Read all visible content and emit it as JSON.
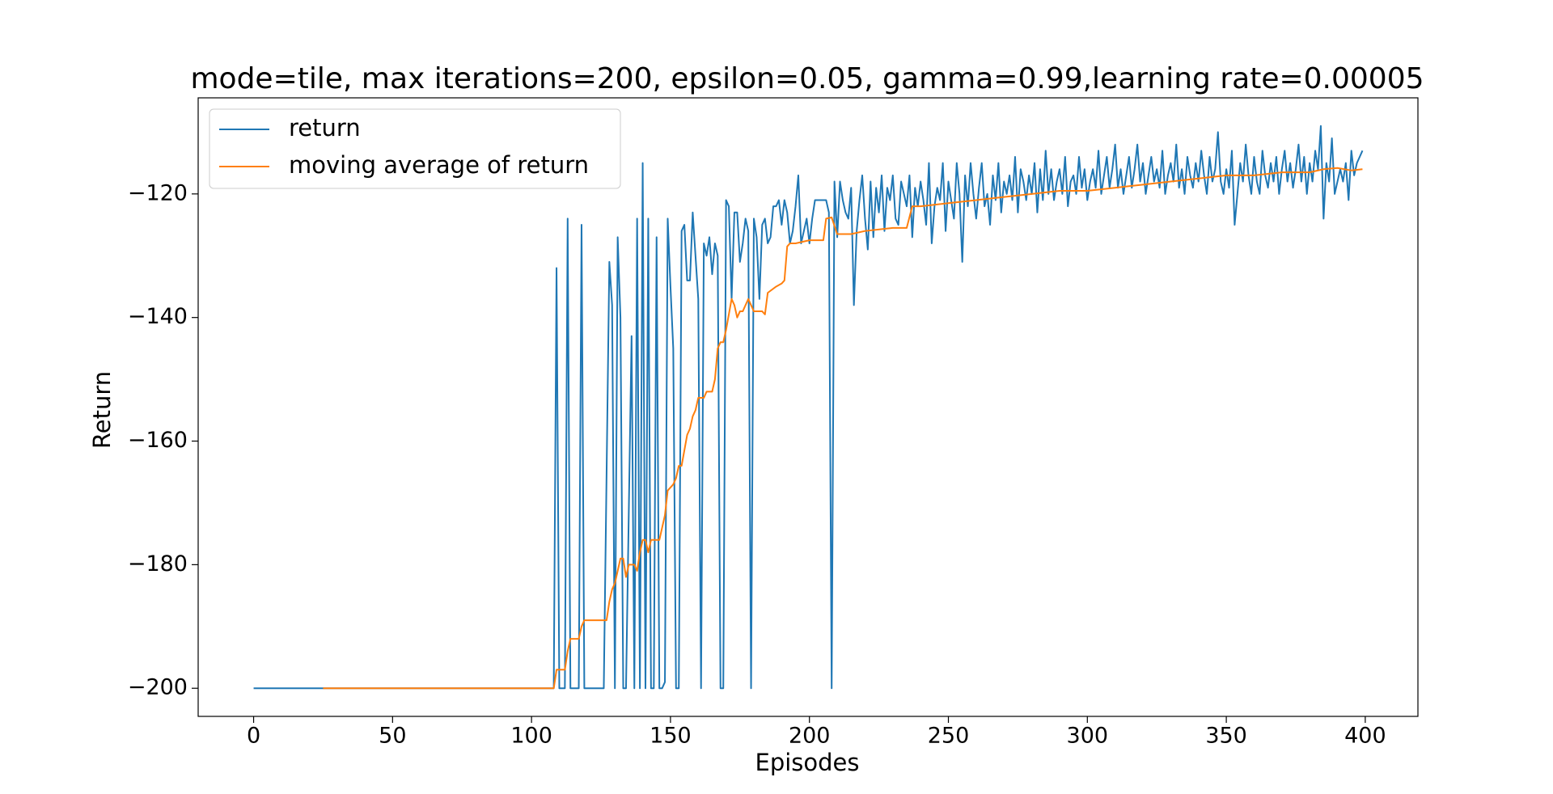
{
  "chart_data": {
    "type": "line",
    "title": "mode=tile, max iterations=200, epsilon=0.05, gamma=0.99,learning rate=0.00005",
    "xlabel": "Episodes",
    "ylabel": "Return",
    "xlim": [
      -19.95,
      418.95
    ],
    "ylim": [
      -204.55,
      -104.45
    ],
    "xticks": [
      0,
      50,
      100,
      150,
      200,
      250,
      300,
      350,
      400
    ],
    "yticks": [
      {
        "value": -200,
        "label": "−200"
      },
      {
        "value": -180,
        "label": "−180"
      },
      {
        "value": -160,
        "label": "−160"
      },
      {
        "value": -140,
        "label": "−140"
      },
      {
        "value": -120,
        "label": "−120"
      }
    ],
    "legend": "upper left",
    "series": [
      {
        "name": "return",
        "color": "#1f77b4",
        "x": [
          0,
          108,
          109,
          110,
          111,
          112,
          113,
          114,
          115,
          116,
          117,
          118,
          119,
          120,
          122,
          124,
          126,
          128,
          129,
          130,
          131,
          132,
          133,
          134,
          136,
          137,
          138,
          139,
          140,
          141,
          142,
          143,
          144,
          145,
          146,
          147,
          148,
          149,
          150,
          151,
          152,
          153,
          154,
          155,
          156,
          157,
          158,
          159,
          160,
          161,
          162,
          163,
          164,
          165,
          166,
          167,
          168,
          169,
          170,
          171,
          172,
          173,
          174,
          175,
          176,
          177,
          178,
          179,
          180,
          181,
          182,
          183,
          184,
          185,
          186,
          187,
          188,
          189,
          190,
          191,
          192,
          193,
          194,
          195,
          196,
          197,
          198,
          199,
          200,
          201,
          202,
          203,
          204,
          205,
          206,
          207,
          208,
          209,
          210,
          211,
          212,
          213,
          214,
          215,
          216,
          217,
          218,
          219,
          220,
          221,
          222,
          223,
          224,
          225,
          226,
          227,
          228,
          229,
          230,
          231,
          232,
          233,
          234,
          235,
          236,
          237,
          238,
          239,
          240,
          241,
          242,
          243,
          244,
          245,
          246,
          247,
          248,
          249,
          250,
          251,
          252,
          253,
          254,
          255,
          256,
          257,
          258,
          259,
          260,
          261,
          262,
          263,
          264,
          265,
          266,
          267,
          268,
          269,
          270,
          271,
          272,
          273,
          274,
          275,
          276,
          277,
          278,
          279,
          280,
          281,
          282,
          283,
          284,
          285,
          286,
          287,
          288,
          289,
          290,
          291,
          292,
          293,
          294,
          295,
          296,
          297,
          298,
          299,
          300,
          301,
          302,
          303,
          304,
          305,
          306,
          307,
          308,
          309,
          310,
          311,
          312,
          313,
          314,
          315,
          316,
          317,
          318,
          319,
          320,
          321,
          322,
          323,
          324,
          325,
          326,
          327,
          328,
          329,
          330,
          331,
          332,
          333,
          334,
          335,
          336,
          337,
          338,
          339,
          340,
          341,
          342,
          343,
          344,
          345,
          346,
          347,
          348,
          349,
          350,
          351,
          352,
          353,
          354,
          355,
          356,
          357,
          358,
          359,
          360,
          361,
          362,
          363,
          364,
          365,
          366,
          367,
          368,
          369,
          370,
          371,
          372,
          373,
          374,
          375,
          376,
          377,
          378,
          379,
          380,
          381,
          382,
          383,
          384,
          385,
          386,
          387,
          388,
          389,
          390,
          391,
          392,
          393,
          394,
          395,
          396,
          397,
          398,
          399
        ],
        "values": [
          -200,
          -200,
          -132,
          -200,
          -200,
          -200,
          -124,
          -200,
          -200,
          -200,
          -200,
          -125,
          -200,
          -200,
          -200,
          -200,
          -200,
          -131,
          -138,
          -200,
          -127,
          -140,
          -200,
          -200,
          -143,
          -200,
          -124,
          -200,
          -115,
          -200,
          -124,
          -200,
          -200,
          -127,
          -200,
          -200,
          -199,
          -124,
          -135,
          -145,
          -200,
          -200,
          -126,
          -125,
          -134,
          -134,
          -123,
          -130,
          -137,
          -200,
          -128,
          -130,
          -127,
          -133,
          -128,
          -130,
          -200,
          -200,
          -121,
          -122,
          -137,
          -123,
          -123,
          -131,
          -128,
          -124,
          -126,
          -200,
          -124,
          -127,
          -137,
          -125,
          -124,
          -128,
          -127,
          -122,
          -122,
          -121,
          -125,
          -121,
          -123,
          -128,
          -126,
          -122,
          -117,
          -128,
          -126,
          -124,
          -128,
          -124,
          -121,
          -121,
          -121,
          -121,
          -121,
          -123,
          -200,
          -118,
          -127,
          -118,
          -121,
          -123,
          -124,
          -119,
          -138,
          -126,
          -121,
          -117,
          -124,
          -129,
          -118,
          -127,
          -119,
          -123,
          -117,
          -126,
          -119,
          -121,
          -117,
          -124,
          -125,
          -118,
          -120,
          -122,
          -117,
          -127,
          -119,
          -122,
          -118,
          -121,
          -125,
          -115,
          -128,
          -122,
          -119,
          -121,
          -115,
          -126,
          -118,
          -121,
          -124,
          -115,
          -120,
          -131,
          -117,
          -122,
          -115,
          -120,
          -124,
          -119,
          -115,
          -122,
          -120,
          -125,
          -117,
          -121,
          -115,
          -123,
          -118,
          -120,
          -117,
          -121,
          -114,
          -123,
          -116,
          -118,
          -121,
          -117,
          -120,
          -115,
          -123,
          -116,
          -121,
          -113,
          -120,
          -116,
          -121,
          -118,
          -116,
          -120,
          -114,
          -122,
          -118,
          -117,
          -120,
          -114,
          -119,
          -116,
          -121,
          -118,
          -116,
          -119,
          -113,
          -120,
          -117,
          -114,
          -119,
          -116,
          -112,
          -119,
          -116,
          -120,
          -117,
          -114,
          -119,
          -116,
          -112,
          -118,
          -115,
          -120,
          -117,
          -114,
          -118,
          -116,
          -119,
          -113,
          -120,
          -117,
          -115,
          -118,
          -112,
          -119,
          -116,
          -120,
          -114,
          -117,
          -119,
          -115,
          -118,
          -113,
          -117,
          -120,
          -114,
          -118,
          -116,
          -110,
          -118,
          -120,
          -116,
          -119,
          -113,
          -125,
          -120,
          -115,
          -118,
          -112,
          -117,
          -120,
          -114,
          -118,
          -120,
          -113,
          -117,
          -119,
          -115,
          -118,
          -114,
          -120,
          -116,
          -113,
          -118,
          -115,
          -119,
          -116,
          -112,
          -118,
          -114,
          -120,
          -115,
          -118,
          -113,
          -116,
          -109,
          -124,
          -115,
          -118,
          -111,
          -120,
          -118,
          -116,
          -118,
          -115,
          -121,
          -113,
          -117,
          -115,
          -114,
          -113
        ]
      },
      {
        "name": "moving average of return",
        "color": "#ff7f0e",
        "x": [
          25,
          108,
          109,
          112,
          113,
          114,
          117,
          118,
          119,
          126,
          127,
          128,
          129,
          130,
          132,
          133,
          134,
          135,
          137,
          138,
          139,
          140,
          141,
          142,
          143,
          146,
          148,
          149,
          151,
          152,
          153,
          154,
          156,
          157,
          158,
          159,
          160,
          162,
          163,
          165,
          166,
          167,
          168,
          169,
          170,
          172,
          173,
          174,
          175,
          176,
          177,
          178,
          180,
          183,
          184,
          185,
          188,
          190,
          191,
          192,
          193,
          195,
          200,
          205,
          206,
          208,
          210,
          215,
          220,
          230,
          235,
          237,
          240,
          250,
          260,
          270,
          280,
          290,
          300,
          310,
          320,
          330,
          340,
          350,
          360,
          370,
          380,
          385,
          390,
          395,
          399
        ],
        "values": [
          -200,
          -200,
          -197,
          -197,
          -194,
          -192,
          -192,
          -190,
          -189,
          -189,
          -189,
          -186,
          -184,
          -183,
          -179,
          -179,
          -182,
          -180,
          -180,
          -181,
          -178,
          -176,
          -176,
          -178,
          -176,
          -176,
          -172,
          -168,
          -167,
          -166,
          -164,
          -164,
          -159,
          -158,
          -156,
          -155,
          -153,
          -153,
          -152,
          -152,
          -150,
          -145,
          -144,
          -144,
          -142,
          -137,
          -138,
          -140,
          -139,
          -139,
          -138,
          -137,
          -139,
          -139,
          -139.5,
          -136,
          -135,
          -134.5,
          -134,
          -128.5,
          -128,
          -128,
          -127.5,
          -127.5,
          -124,
          -123.8,
          -126.5,
          -126.5,
          -126,
          -125.5,
          -125.5,
          -122,
          -122,
          -121.5,
          -121,
          -120.5,
          -120,
          -119.5,
          -119.5,
          -119,
          -118.5,
          -118,
          -117.5,
          -117,
          -117,
          -116.5,
          -116.5,
          -116,
          -115.8,
          -116.2,
          -116
        ]
      }
    ]
  }
}
